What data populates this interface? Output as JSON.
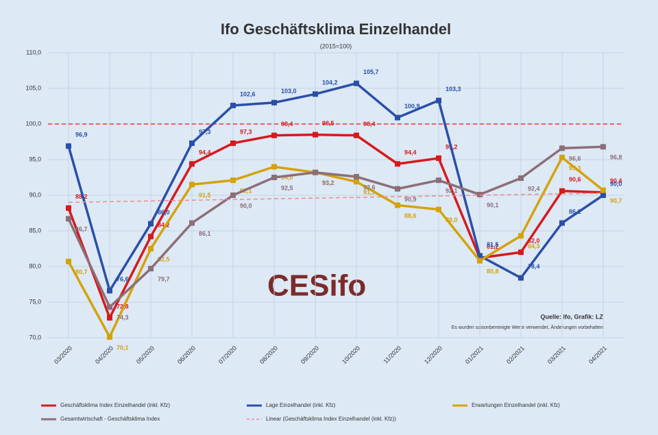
{
  "chart_data": {
    "type": "line",
    "title": "Ifo Geschäftsklima Einzelhandel",
    "subtitle": "(2015=100)",
    "source": "Quelle: ifo, Grafik: LZ",
    "note": "Es wurden saisonbereinigte Werte verwendet, Änderungen vorbehalten",
    "logo": "CESifo",
    "categories": [
      "03/2020",
      "04/2020",
      "05/2020",
      "06/2020",
      "07/2020",
      "08/2020",
      "09/2020",
      "10/2020",
      "11/2020",
      "12/2020",
      "01/2021",
      "02/2021",
      "03/2021",
      "04/2021"
    ],
    "ylim": [
      70,
      110
    ],
    "yticks": [
      {
        "value": 70,
        "label": "70,0"
      },
      {
        "value": 75,
        "label": "75,0"
      },
      {
        "value": 80,
        "label": "80,0"
      },
      {
        "value": 85,
        "label": "85,0"
      },
      {
        "value": 90,
        "label": "90,0"
      },
      {
        "value": 95,
        "label": "95,0"
      },
      {
        "value": 100,
        "label": "100,0"
      },
      {
        "value": 105,
        "label": "105,0"
      },
      {
        "value": 110,
        "label": "110,0"
      }
    ],
    "grid": true,
    "reference_line": {
      "value": 100,
      "color": "#e53935"
    },
    "series": [
      {
        "name": "Geschäftsklima Index Einzelhandel (inkl. Kfz)",
        "color": "#d7191c",
        "values": [
          88.2,
          72.8,
          84.2,
          94.4,
          97.3,
          98.4,
          98.5,
          98.4,
          94.4,
          95.2,
          81.2,
          82.0,
          90.6,
          90.4
        ],
        "value_labels": [
          "88,2",
          "72,8",
          "84,2",
          "94,4",
          "97,3",
          "98,4",
          "98,5",
          "98,4",
          "94,4",
          "95,2",
          "81,2",
          "82,0",
          "90,6",
          "90,4"
        ]
      },
      {
        "name": "Lage Einzelhandel (inkl. Kfz)",
        "color": "#2a4fa8",
        "values": [
          96.9,
          76.6,
          86.0,
          97.3,
          102.6,
          103.0,
          104.2,
          105.7,
          100.9,
          103.3,
          81.5,
          78.4,
          86.1,
          90.0
        ],
        "value_labels": [
          "96,9",
          "76,6",
          "86,0",
          "97,3",
          "102,6",
          "103,0",
          "104,2",
          "105,7",
          "100,9",
          "103,3",
          "81,5",
          "78,4",
          "86,1",
          "90,0"
        ]
      },
      {
        "name": "Erwartungen Einzelhandel (inkl. Kfz)",
        "color": "#d4a20a",
        "values": [
          80.7,
          70.1,
          82.5,
          91.5,
          92.1,
          94.0,
          93.2,
          91.9,
          88.6,
          88.0,
          80.8,
          84.3,
          95.3,
          90.7
        ],
        "value_labels": [
          "80,7",
          "70,1",
          "82,5",
          "91,5",
          "92,1",
          "94,0",
          "93,2",
          "91,9",
          "88,6",
          "88,0",
          "80,8",
          "84,3",
          "95,3",
          "90,7"
        ]
      },
      {
        "name": "Gesamtwirtschaft - Geschäftsklima Index",
        "color": "#8c6e78",
        "values": [
          86.7,
          74.3,
          79.7,
          86.1,
          90.0,
          92.5,
          93.2,
          92.6,
          90.9,
          92.1,
          90.1,
          92.4,
          96.6,
          96.8
        ],
        "value_labels": [
          "86,7",
          "74,3",
          "79,7",
          "86,1",
          "90,0",
          "92,5",
          "93,2",
          "92,6",
          "90,9",
          "92,1",
          "90,1",
          "92,4",
          "96,6",
          "96,8"
        ]
      },
      {
        "name": "Linear (Geschäftsklima Index Einzelhandel (inkl. Kfz))",
        "color": "#f08a8a",
        "dashed": true,
        "values": [
          89.0,
          89.1,
          89.2,
          89.3,
          89.4,
          89.5,
          89.6,
          89.7,
          89.8,
          89.9,
          90.0,
          90.1,
          90.2,
          90.3
        ]
      }
    ]
  }
}
